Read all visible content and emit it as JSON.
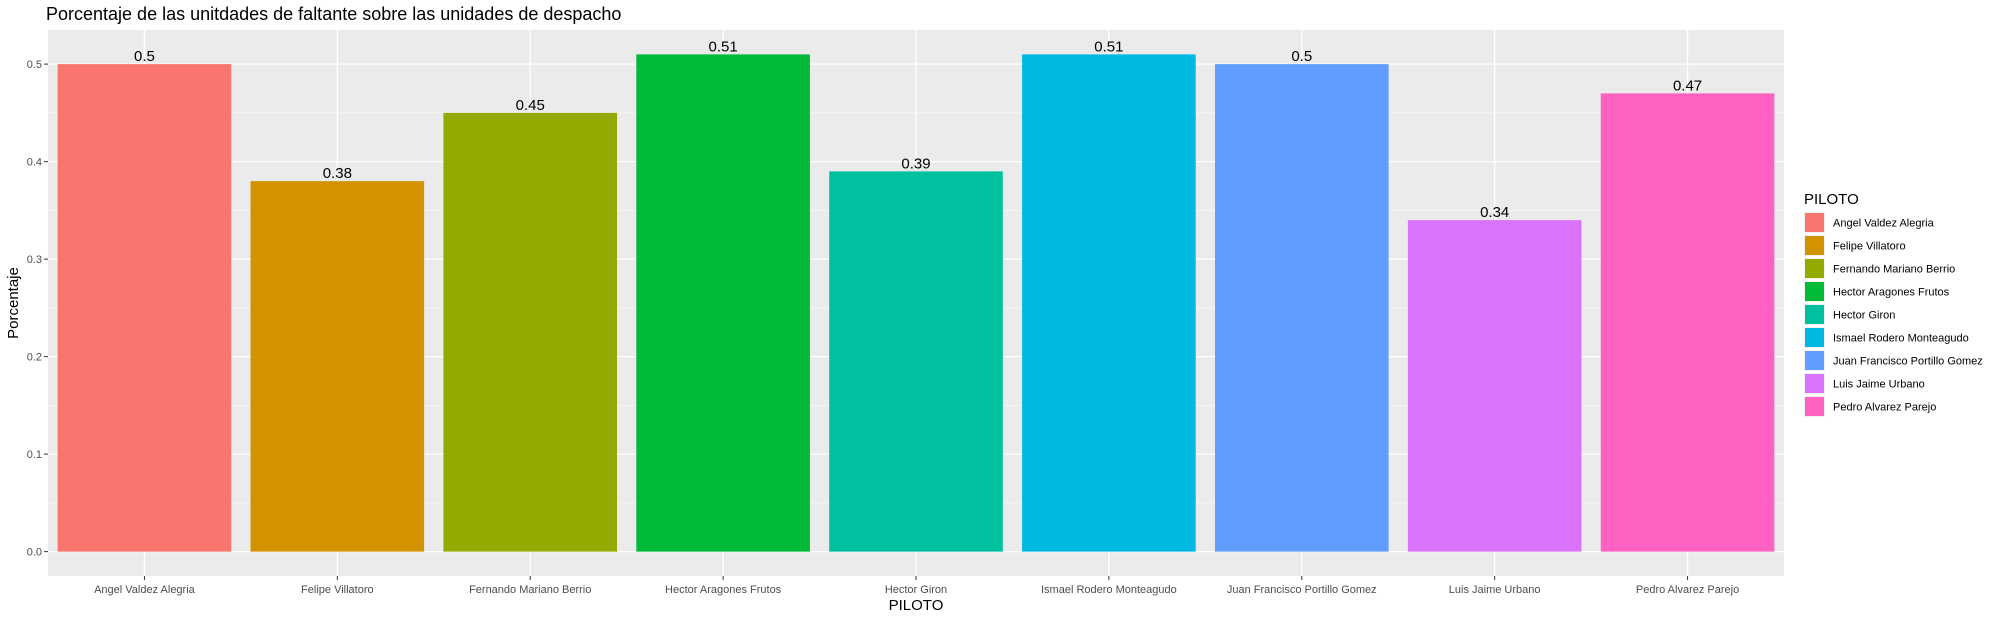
{
  "chart_data": {
    "type": "bar",
    "title": "Porcentaje de las unitdades de faltante sobre las unidades de despacho",
    "xlabel": "PILOTO",
    "ylabel": "Porcentaje",
    "ylim": [
      -0.025,
      0.535
    ],
    "yticks": [
      "0.0",
      "0.1",
      "0.2",
      "0.3",
      "0.4",
      "0.5"
    ],
    "grid": true,
    "legend": {
      "title": "PILOTO",
      "placement": "right"
    },
    "categories": [
      "Angel Valdez Alegria",
      "Felipe Villatoro",
      "Fernando Mariano Berrio",
      "Hector Aragones Frutos",
      "Hector Giron",
      "Ismael Rodero Monteagudo",
      "Juan Francisco Portillo Gomez",
      "Luis Jaime Urbano",
      "Pedro Alvarez Parejo"
    ],
    "values": [
      0.5,
      0.38,
      0.45,
      0.51,
      0.39,
      0.51,
      0.5,
      0.34,
      0.47
    ],
    "value_labels": [
      "0.5",
      "0.38",
      "0.45",
      "0.51",
      "0.39",
      "0.51",
      "0.5",
      "0.34",
      "0.47"
    ],
    "colors": [
      "#F8766D",
      "#D39200",
      "#93AA00",
      "#00BA38",
      "#00C19F",
      "#00B9E3",
      "#619CFF",
      "#DB72FB",
      "#FF61C3"
    ],
    "panel_color": "#EBEBEB",
    "grid_color": "#FFFFFF"
  }
}
